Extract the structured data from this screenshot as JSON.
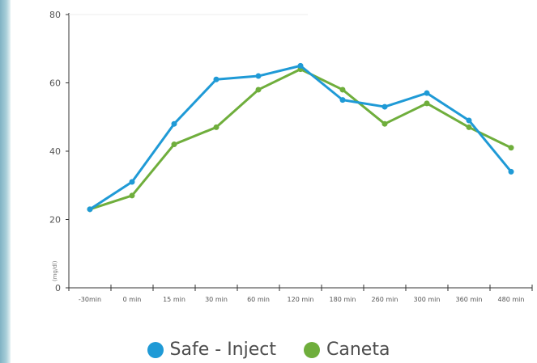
{
  "chart_data": {
    "type": "line",
    "title": "",
    "xlabel": "",
    "ylabel": "(mg/dl)",
    "categories": [
      "-30min",
      "0 min",
      "15 min",
      "30 min",
      "60 min",
      "120 min",
      "180 min",
      "260 min",
      "300 min",
      "360 min",
      "480 min"
    ],
    "ylim": [
      0,
      80
    ],
    "yticks": [
      0,
      20,
      40,
      60,
      80
    ],
    "grid": false,
    "legend_position": "bottom",
    "series": [
      {
        "name": "Safe - Inject",
        "color": "#1f9ad6",
        "values": [
          23,
          31,
          48,
          61,
          62,
          65,
          55,
          53,
          57,
          49,
          34
        ]
      },
      {
        "name": "Caneta",
        "color": "#6fae3c",
        "values": [
          23,
          27,
          42,
          47,
          58,
          64,
          58,
          48,
          54,
          47,
          41
        ]
      }
    ]
  }
}
